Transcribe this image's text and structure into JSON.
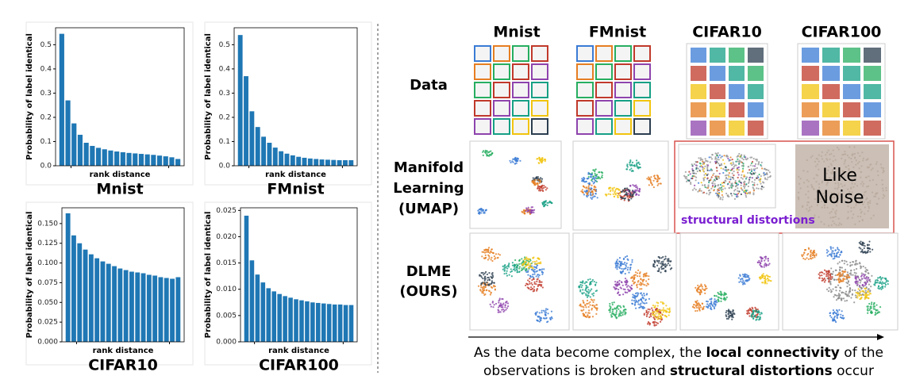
{
  "chart_data": [
    {
      "type": "bar",
      "title": "Mnist",
      "xlabel": "rank distance",
      "ylabel": "Probability of label identical",
      "color": "#1f77b4",
      "values": [
        0.545,
        0.27,
        0.175,
        0.128,
        0.095,
        0.082,
        0.074,
        0.068,
        0.063,
        0.059,
        0.056,
        0.053,
        0.051,
        0.049,
        0.047,
        0.045,
        0.042,
        0.039,
        0.035,
        0.028
      ],
      "ylim": [
        0,
        0.57
      ],
      "yticks": [
        {
          "value": 0,
          "label": "0.0"
        },
        0.1,
        0.2,
        0.3,
        0.4,
        0.5
      ]
    },
    {
      "type": "bar",
      "title": "FMnist",
      "xlabel": "rank distance",
      "ylabel": "Probability of label identical",
      "color": "#1f77b4",
      "values": [
        0.54,
        0.37,
        0.225,
        0.16,
        0.12,
        0.095,
        0.075,
        0.06,
        0.05,
        0.043,
        0.037,
        0.033,
        0.03,
        0.028,
        0.026,
        0.025,
        0.024,
        0.023,
        0.023,
        0.023
      ],
      "ylim": [
        0,
        0.57
      ],
      "yticks": [
        {
          "value": 0,
          "label": "0.0"
        },
        0.1,
        0.2,
        0.3,
        0.4,
        0.5
      ]
    },
    {
      "type": "bar",
      "title": "CIFAR10",
      "xlabel": "rank distance",
      "ylabel": "Probability of label identical",
      "color": "#1f77b4",
      "values": [
        0.163,
        0.135,
        0.125,
        0.117,
        0.111,
        0.106,
        0.102,
        0.099,
        0.096,
        0.093,
        0.091,
        0.089,
        0.088,
        0.087,
        0.085,
        0.084,
        0.082,
        0.081,
        0.08,
        0.082
      ],
      "ylim": [
        0,
        0.17
      ],
      "yticks": [
        {
          "value": 0,
          "label": "0.000"
        },
        0.025,
        {
          "value": 0.05,
          "label": "0.050"
        },
        0.075,
        {
          "value": 0.1,
          "label": "0.100"
        },
        0.125,
        {
          "value": 0.15,
          "label": "0.150"
        }
      ]
    },
    {
      "type": "bar",
      "title": "CIFAR100",
      "xlabel": "rank distance",
      "ylabel": "Probability of label identical",
      "color": "#1f77b4",
      "values": [
        0.024,
        0.0155,
        0.0128,
        0.0113,
        0.0102,
        0.0096,
        0.0091,
        0.0087,
        0.0084,
        0.0081,
        0.0079,
        0.0077,
        0.0075,
        0.0074,
        0.0073,
        0.0072,
        0.0071,
        0.0071,
        0.007,
        0.007
      ],
      "ylim": [
        0,
        0.0255
      ],
      "yticks": [
        {
          "value": 0,
          "label": "0.000"
        },
        0.005,
        {
          "value": 0.01,
          "label": "0.010"
        },
        0.015,
        {
          "value": 0.02,
          "label": "0.020"
        },
        0.025
      ]
    }
  ],
  "figure": {
    "columns": [
      "Mnist",
      "FMnist",
      "CIFAR10",
      "CIFAR100"
    ],
    "rows": [
      [
        "Data"
      ],
      [
        "Manifold",
        "Learning",
        "(UMAP)"
      ],
      [
        "DLME",
        "(OURS)"
      ]
    ],
    "distortion_label": "structural distortions",
    "noise_label": [
      "Like",
      "Noise"
    ],
    "caption": [
      [
        {
          "text": "As the data become complex, the ",
          "bold": false
        },
        {
          "text": "local connectivity",
          "bold": true
        },
        {
          "text": " of the",
          "bold": false
        }
      ],
      [
        {
          "text": "observations is broken and ",
          "bold": false
        },
        {
          "text": "structural distortions",
          "bold": true
        },
        {
          "text": " occur",
          "bold": false
        }
      ]
    ]
  }
}
